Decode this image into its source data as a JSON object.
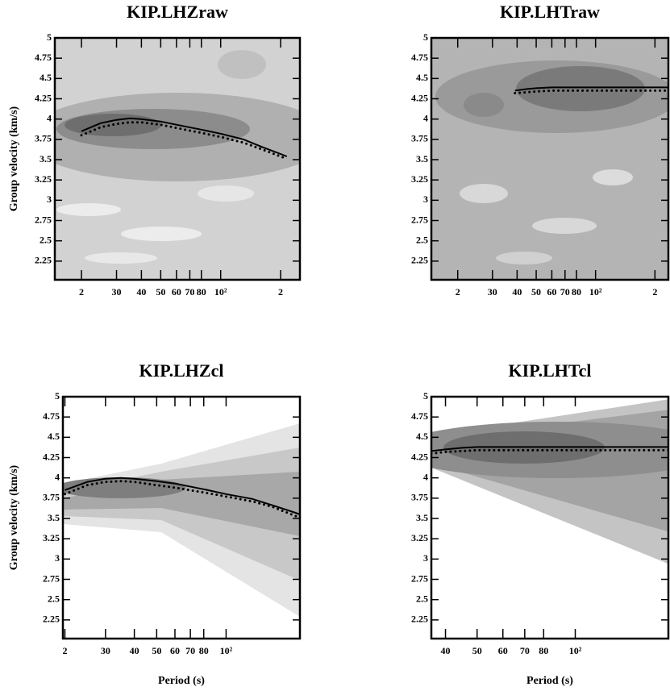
{
  "chart_data": [
    {
      "type": "line",
      "title": "KIP.LHZraw",
      "ylabel": "Group velocity (km/s)",
      "log_x": true,
      "xlim": [
        14.7,
        250
      ],
      "ylim": [
        2.02,
        5
      ],
      "xticks": [
        {
          "value": 20,
          "label": "2"
        },
        30,
        40,
        50,
        60,
        70,
        80,
        {
          "value": 100,
          "label": "10²"
        },
        {
          "value": 200,
          "label": "2"
        }
      ],
      "yticks": [
        2.25,
        2.5,
        2.75,
        3,
        3.25,
        3.5,
        3.75,
        4,
        4.25,
        4.5,
        4.75,
        5
      ],
      "x": [
        20,
        25,
        30,
        35,
        40,
        50,
        60,
        80,
        100,
        130,
        160,
        200,
        215
      ],
      "series": [
        {
          "color": "#000000",
          "style": "solid",
          "values": [
            3.85,
            3.95,
            3.99,
            4.01,
            4.0,
            3.97,
            3.93,
            3.87,
            3.82,
            3.75,
            3.66,
            3.57,
            3.54
          ]
        },
        {
          "color": "#000000",
          "style": "dotted",
          "values": [
            3.8,
            3.9,
            3.94,
            3.96,
            3.96,
            3.93,
            3.89,
            3.83,
            3.78,
            3.71,
            3.63,
            3.54,
            3.51
          ]
        }
      ]
    },
    {
      "type": "line",
      "title": "KIP.LHTraw",
      "log_x": true,
      "xlim": [
        14.7,
        234
      ],
      "ylim": [
        2.02,
        5
      ],
      "xticks": [
        {
          "value": 20,
          "label": "2"
        },
        30,
        40,
        50,
        60,
        70,
        80,
        {
          "value": 100,
          "label": "10²"
        },
        {
          "value": 200,
          "label": "2"
        }
      ],
      "yticks": [
        2.25,
        2.5,
        2.75,
        3,
        3.25,
        3.5,
        3.75,
        4,
        4.25,
        4.5,
        4.75,
        5
      ],
      "x": [
        39,
        45,
        50,
        60,
        80,
        100,
        150,
        234
      ],
      "series": [
        {
          "color": "#000000",
          "style": "solid",
          "values": [
            4.35,
            4.37,
            4.38,
            4.39,
            4.39,
            4.39,
            4.39,
            4.39
          ]
        },
        {
          "color": "#000000",
          "style": "dotted",
          "values": [
            4.32,
            4.33,
            4.34,
            4.35,
            4.35,
            4.35,
            4.35,
            4.35
          ]
        }
      ]
    },
    {
      "type": "line",
      "title": "KIP.LHZcl",
      "ylabel": "Group velocity (km/s)",
      "xlabel": "Period (s)",
      "log_x": true,
      "xlim": [
        19.6,
        209
      ],
      "ylim": [
        2.02,
        5
      ],
      "xticks": [
        {
          "value": 20,
          "label": "2"
        },
        30,
        40,
        50,
        60,
        70,
        80,
        {
          "value": 100,
          "label": "10²"
        }
      ],
      "yticks": [
        2.25,
        2.5,
        2.75,
        3,
        3.25,
        3.5,
        3.75,
        4,
        4.25,
        4.5,
        4.75,
        5
      ],
      "x": [
        20,
        25,
        30,
        35,
        40,
        50,
        60,
        80,
        100,
        130,
        160,
        200,
        209
      ],
      "series": [
        {
          "color": "#000000",
          "style": "solid",
          "values": [
            3.85,
            3.95,
            3.99,
            4.0,
            3.99,
            3.96,
            3.93,
            3.86,
            3.8,
            3.74,
            3.66,
            3.57,
            3.55
          ]
        },
        {
          "color": "#000000",
          "style": "dotted",
          "values": [
            3.8,
            3.91,
            3.95,
            3.96,
            3.95,
            3.91,
            3.88,
            3.82,
            3.77,
            3.71,
            3.64,
            3.53,
            3.52
          ]
        }
      ]
    },
    {
      "type": "line",
      "title": "KIP.LHTcl",
      "xlabel": "Period (s)",
      "log_x": true,
      "xlim": [
        36.2,
        193
      ],
      "ylim": [
        2.02,
        5
      ],
      "xticks": [
        40,
        50,
        60,
        70,
        80,
        {
          "value": 100,
          "label": "10²"
        }
      ],
      "yticks": [
        2.25,
        2.5,
        2.75,
        3,
        3.25,
        3.5,
        3.75,
        4,
        4.25,
        4.5,
        4.75,
        5
      ],
      "x": [
        36.2,
        40,
        45,
        50,
        60,
        80,
        100,
        150,
        193
      ],
      "series": [
        {
          "color": "#000000",
          "style": "solid",
          "values": [
            4.33,
            4.35,
            4.37,
            4.38,
            4.38,
            4.38,
            4.38,
            4.38,
            4.38
          ]
        },
        {
          "color": "#000000",
          "style": "dotted",
          "values": [
            4.3,
            4.32,
            4.33,
            4.34,
            4.34,
            4.34,
            4.34,
            4.34,
            4.34
          ]
        }
      ]
    }
  ]
}
